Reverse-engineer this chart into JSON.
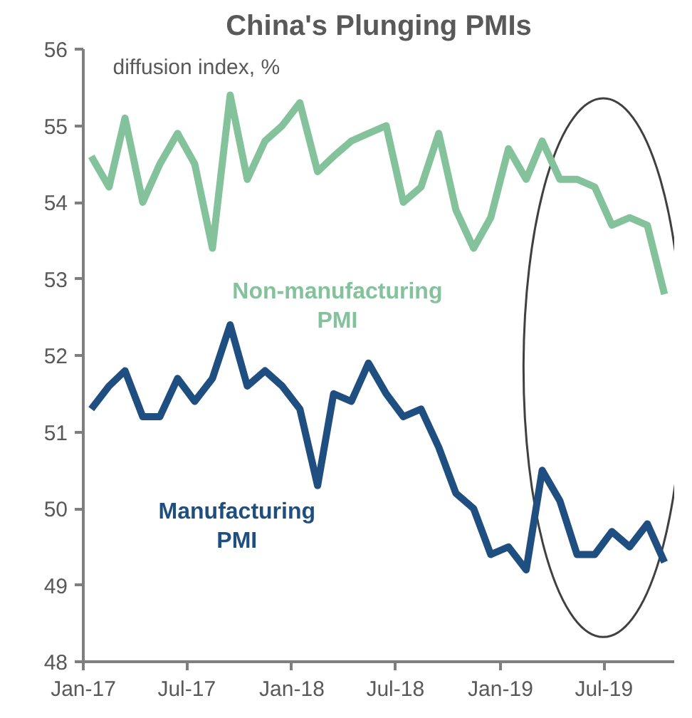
{
  "chart_data": {
    "type": "line",
    "title": "China's Plunging PMIs",
    "ylabel": "diffusion index, %",
    "x": [
      "2017-01-15",
      "2017-02-15",
      "2017-03-15",
      "2017-04-15",
      "2017-05-15",
      "2017-06-15",
      "2017-07-15",
      "2017-08-15",
      "2017-09-15",
      "2017-10-15",
      "2017-11-15",
      "2017-12-15",
      "2018-01-15",
      "2018-02-15",
      "2018-03-15",
      "2018-04-15",
      "2018-05-15",
      "2018-06-15",
      "2018-07-15",
      "2018-08-15",
      "2018-09-15",
      "2018-10-15",
      "2018-11-15",
      "2018-12-15",
      "2019-01-15",
      "2019-02-15",
      "2019-03-15",
      "2019-04-15",
      "2019-05-15",
      "2019-06-15",
      "2019-07-15",
      "2019-08-15",
      "2019-09-15",
      "2019-10-15"
    ],
    "series": [
      {
        "name": "Non-manufacturing PMI",
        "color": "#84c29c",
        "values": [
          54.6,
          54.2,
          55.1,
          54.0,
          54.5,
          54.9,
          54.5,
          53.4,
          55.4,
          54.3,
          54.8,
          55.0,
          55.3,
          54.4,
          54.6,
          54.8,
          54.9,
          55.0,
          54.0,
          54.2,
          54.9,
          53.9,
          53.4,
          53.8,
          54.7,
          54.3,
          54.8,
          54.3,
          54.3,
          54.2,
          53.7,
          53.8,
          53.7,
          52.8
        ]
      },
      {
        "name": "Manufacturing PMI",
        "color": "#1f4e80",
        "values": [
          51.3,
          51.6,
          51.8,
          51.2,
          51.2,
          51.7,
          51.4,
          51.7,
          52.4,
          51.6,
          51.8,
          51.6,
          51.3,
          50.3,
          51.5,
          51.4,
          51.9,
          51.5,
          51.2,
          51.3,
          50.8,
          50.2,
          50.0,
          49.4,
          49.5,
          49.2,
          50.5,
          50.1,
          49.4,
          49.4,
          49.7,
          49.5,
          49.8,
          49.3
        ]
      }
    ],
    "xlim": [
      "2017-01-01",
      "2019-11-01"
    ],
    "xticks": [
      {
        "value": "2017-01-01",
        "label": "Jan-17"
      },
      {
        "value": "2017-07-01",
        "label": "Jul-17"
      },
      {
        "value": "2018-01-01",
        "label": "Jan-18"
      },
      {
        "value": "2018-07-01",
        "label": "Jul-18"
      },
      {
        "value": "2019-01-01",
        "label": "Jan-19"
      },
      {
        "value": "2019-07-01",
        "label": "Jul-19"
      }
    ],
    "ylim": [
      48,
      56
    ],
    "yticks": [
      48,
      49,
      50,
      51,
      52,
      53,
      54,
      55,
      56
    ],
    "grid": false,
    "legend": false,
    "marker": "none",
    "line_style": "solid"
  }
}
